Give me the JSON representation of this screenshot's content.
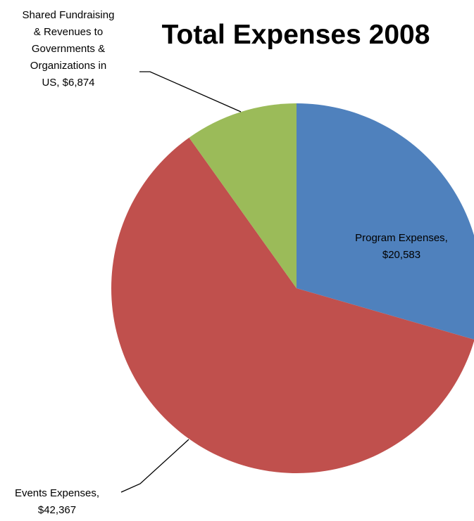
{
  "chart_data": {
    "type": "pie",
    "title": "Total Expenses 2008",
    "slices": [
      {
        "label": "Program Expenses",
        "value": 20583,
        "value_text": "$20,583",
        "color": "#4F81BD",
        "label_lines": [
          "Program Expenses,",
          "$20,583"
        ]
      },
      {
        "label": "Events Expenses",
        "value": 42367,
        "value_text": "$42,367",
        "color": "#C0504D",
        "label_lines": [
          "Events Expenses,",
          "$42,367"
        ]
      },
      {
        "label": "Shared Fundraising & Revenues to Governments & Organizations in US",
        "value": 6874,
        "value_text": "$6,874",
        "color": "#9BBB59",
        "label_lines": [
          "Shared Fundraising",
          "& Revenues to",
          "Governments &",
          "Organizations in",
          "US,  $6,874"
        ]
      }
    ],
    "start_angle": "12 o'clock",
    "direction": "clockwise",
    "legend": "none"
  }
}
